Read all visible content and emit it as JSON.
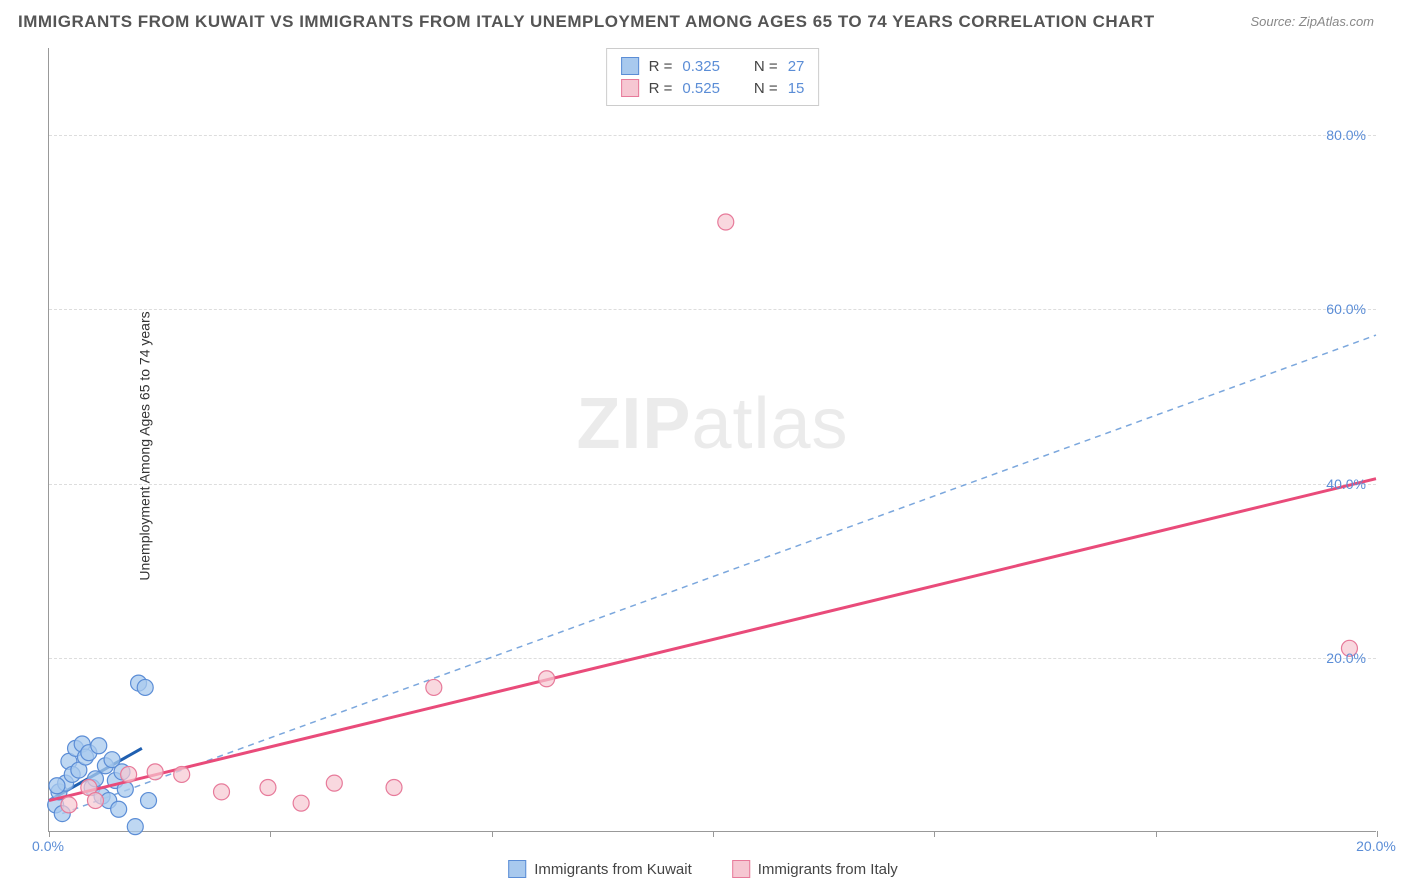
{
  "title": "IMMIGRANTS FROM KUWAIT VS IMMIGRANTS FROM ITALY UNEMPLOYMENT AMONG AGES 65 TO 74 YEARS CORRELATION CHART",
  "source": "Source: ZipAtlas.com",
  "y_axis_label": "Unemployment Among Ages 65 to 74 years",
  "watermark_bold": "ZIP",
  "watermark_rest": "atlas",
  "chart": {
    "type": "scatter-correlation",
    "background_color": "#ffffff",
    "grid_color": "#dddddd",
    "axis_color": "#999999",
    "tick_label_color": "#5b8dd6",
    "xlim": [
      0,
      20
    ],
    "ylim": [
      0,
      90
    ],
    "y_ticks": [
      20,
      40,
      60,
      80
    ],
    "y_tick_labels": [
      "20.0%",
      "40.0%",
      "60.0%",
      "80.0%"
    ],
    "x_ticks": [
      0,
      3.33,
      6.67,
      10,
      13.33,
      16.67,
      20
    ],
    "x_tick_labels_shown": {
      "0": "0.0%",
      "20": "20.0%"
    },
    "series": [
      {
        "name": "Immigrants from Kuwait",
        "marker_fill": "#a8c9ee",
        "marker_stroke": "#5b8dd6",
        "marker_opacity": 0.75,
        "marker_radius": 8,
        "r_value": "0.325",
        "n_value": "27",
        "trend": {
          "type": "solid",
          "color": "#1f5fb0",
          "width": 3,
          "x1": 0,
          "y1": 3.5,
          "x2": 1.4,
          "y2": 9.5
        },
        "reference_line": {
          "type": "dashed",
          "color": "#7ba7dd",
          "width": 1.5,
          "x1": 0.2,
          "y1": 2,
          "x2": 20,
          "y2": 57
        },
        "points": [
          {
            "x": 0.1,
            "y": 3.0
          },
          {
            "x": 0.15,
            "y": 4.5
          },
          {
            "x": 0.2,
            "y": 2.0
          },
          {
            "x": 0.25,
            "y": 5.5
          },
          {
            "x": 0.3,
            "y": 8.0
          },
          {
            "x": 0.35,
            "y": 6.5
          },
          {
            "x": 0.4,
            "y": 9.5
          },
          {
            "x": 0.45,
            "y": 7.0
          },
          {
            "x": 0.5,
            "y": 10.0
          },
          {
            "x": 0.55,
            "y": 8.5
          },
          {
            "x": 0.6,
            "y": 9.0
          },
          {
            "x": 0.65,
            "y": 5.0
          },
          {
            "x": 0.7,
            "y": 6.0
          },
          {
            "x": 0.75,
            "y": 9.8
          },
          {
            "x": 0.8,
            "y": 4.0
          },
          {
            "x": 0.85,
            "y": 7.5
          },
          {
            "x": 0.9,
            "y": 3.5
          },
          {
            "x": 0.95,
            "y": 8.2
          },
          {
            "x": 1.0,
            "y": 5.8
          },
          {
            "x": 1.05,
            "y": 2.5
          },
          {
            "x": 1.1,
            "y": 6.8
          },
          {
            "x": 1.15,
            "y": 4.8
          },
          {
            "x": 1.3,
            "y": 0.5
          },
          {
            "x": 1.35,
            "y": 17.0
          },
          {
            "x": 1.45,
            "y": 16.5
          },
          {
            "x": 1.5,
            "y": 3.5
          },
          {
            "x": 0.12,
            "y": 5.2
          }
        ]
      },
      {
        "name": "Immigrants from Italy",
        "marker_fill": "#f6c7d2",
        "marker_stroke": "#e77a9a",
        "marker_opacity": 0.7,
        "marker_radius": 8,
        "r_value": "0.525",
        "n_value": "15",
        "trend": {
          "type": "solid",
          "color": "#e94b7a",
          "width": 3,
          "x1": 0,
          "y1": 3.5,
          "x2": 20,
          "y2": 40.5
        },
        "points": [
          {
            "x": 0.3,
            "y": 3.0
          },
          {
            "x": 0.6,
            "y": 5.0
          },
          {
            "x": 0.7,
            "y": 3.5
          },
          {
            "x": 1.2,
            "y": 6.5
          },
          {
            "x": 1.6,
            "y": 6.8
          },
          {
            "x": 2.0,
            "y": 6.5
          },
          {
            "x": 2.6,
            "y": 4.5
          },
          {
            "x": 3.3,
            "y": 5.0
          },
          {
            "x": 3.8,
            "y": 3.2
          },
          {
            "x": 4.3,
            "y": 5.5
          },
          {
            "x": 5.2,
            "y": 5.0
          },
          {
            "x": 5.8,
            "y": 16.5
          },
          {
            "x": 7.5,
            "y": 17.5
          },
          {
            "x": 10.2,
            "y": 70.0
          },
          {
            "x": 19.6,
            "y": 21.0
          }
        ]
      }
    ]
  },
  "stats_legend": {
    "r_label": "R =",
    "n_label": "N ="
  },
  "bottom_legend": {
    "items": [
      "Immigrants from Kuwait",
      "Immigrants from Italy"
    ]
  }
}
